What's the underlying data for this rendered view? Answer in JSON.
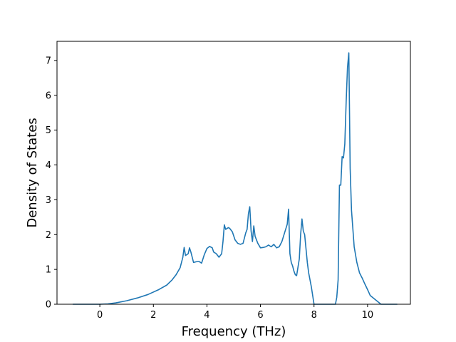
{
  "chart_data": {
    "type": "line",
    "title": "",
    "xlabel": "Frequency (THz)",
    "ylabel": "Density of States",
    "xlim": [
      -1.6,
      11.6
    ],
    "ylim": [
      0,
      7.55
    ],
    "xticks": [
      0,
      2,
      4,
      6,
      8,
      10
    ],
    "yticks": [
      0,
      1,
      2,
      3,
      4,
      5,
      6,
      7
    ],
    "grid": false,
    "legend": "none",
    "colors": {
      "line": "#1f77b4",
      "axes": "#000000",
      "background": "#ffffff"
    },
    "series": [
      {
        "x": [
          -1.0,
          -0.5,
          0.0,
          0.3,
          0.6,
          1.0,
          1.4,
          1.8,
          2.2,
          2.5,
          2.7,
          2.85,
          3.0,
          3.1,
          3.15,
          3.2,
          3.3,
          3.35,
          3.4,
          3.5,
          3.6,
          3.7,
          3.8,
          3.9,
          4.0,
          4.1,
          4.2,
          4.25,
          4.35,
          4.45,
          4.55,
          4.6,
          4.65,
          4.7,
          4.8,
          4.85,
          4.95,
          5.05,
          5.15,
          5.25,
          5.35,
          5.45,
          5.5,
          5.55,
          5.6,
          5.65,
          5.7,
          5.75,
          5.8,
          5.9,
          6.0,
          6.1,
          6.2,
          6.3,
          6.4,
          6.5,
          6.6,
          6.7,
          6.8,
          6.9,
          7.0,
          7.05,
          7.1,
          7.15,
          7.2,
          7.25,
          7.3,
          7.35,
          7.45,
          7.5,
          7.55,
          7.6,
          7.65,
          7.7,
          7.75,
          7.8,
          7.9,
          8.0,
          8.05,
          8.3,
          8.6,
          8.8,
          8.85,
          8.9,
          8.95,
          9.0,
          9.05,
          9.1,
          9.15,
          9.2,
          9.25,
          9.3,
          9.35,
          9.4,
          9.5,
          9.6,
          9.7,
          9.8,
          9.9,
          10.0,
          10.1,
          10.5,
          11.1
        ],
        "y": [
          0,
          0,
          0,
          0.01,
          0.04,
          0.1,
          0.18,
          0.28,
          0.42,
          0.55,
          0.7,
          0.85,
          1.05,
          1.35,
          1.63,
          1.4,
          1.45,
          1.62,
          1.5,
          1.2,
          1.22,
          1.23,
          1.18,
          1.42,
          1.6,
          1.66,
          1.62,
          1.5,
          1.45,
          1.35,
          1.45,
          1.8,
          2.28,
          2.15,
          2.2,
          2.18,
          2.08,
          1.85,
          1.75,
          1.72,
          1.75,
          2.05,
          2.15,
          2.6,
          2.8,
          2.1,
          1.8,
          2.25,
          1.95,
          1.75,
          1.62,
          1.63,
          1.65,
          1.7,
          1.65,
          1.72,
          1.62,
          1.65,
          1.8,
          2.05,
          2.3,
          2.73,
          1.45,
          1.2,
          1.1,
          0.95,
          0.85,
          0.82,
          1.3,
          2.0,
          2.45,
          2.1,
          2.0,
          1.6,
          1.2,
          0.9,
          0.5,
          0.0,
          0,
          0,
          0,
          0.0,
          0.2,
          0.7,
          3.42,
          3.42,
          4.24,
          4.2,
          4.6,
          5.8,
          6.8,
          7.22,
          3.9,
          2.7,
          1.65,
          1.2,
          0.9,
          0.75,
          0.58,
          0.42,
          0.25,
          0,
          0
        ]
      }
    ]
  }
}
